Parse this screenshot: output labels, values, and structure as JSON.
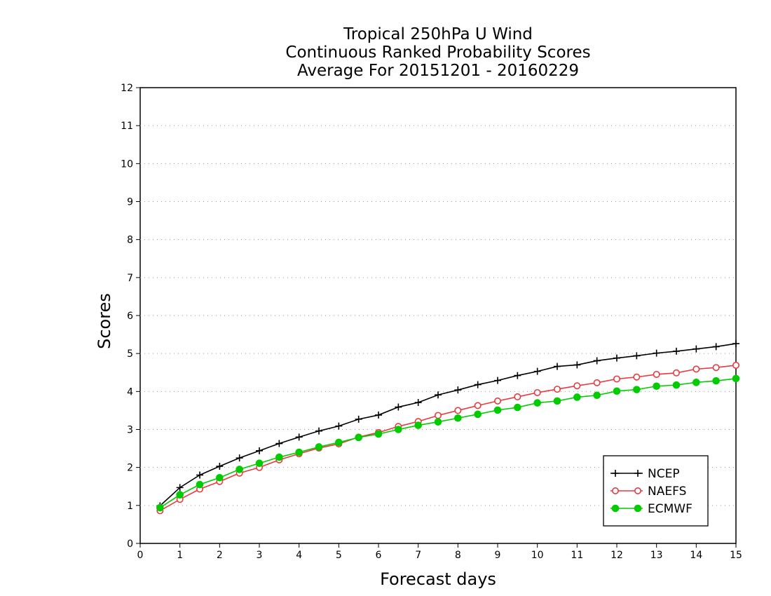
{
  "chart_data": {
    "type": "line",
    "title": [
      "Tropical 250hPa U Wind",
      "Continuous Ranked Probability Scores",
      "Average For 20151201 - 20160229"
    ],
    "xlabel": "Forecast days",
    "ylabel": "Scores",
    "xlim": [
      0,
      15
    ],
    "ylim": [
      0,
      12
    ],
    "xticks": [
      0,
      1,
      2,
      3,
      4,
      5,
      6,
      7,
      8,
      9,
      10,
      11,
      12,
      13,
      14,
      15
    ],
    "yticks": [
      0,
      1,
      2,
      3,
      4,
      5,
      6,
      7,
      8,
      9,
      10,
      11,
      12
    ],
    "grid": "horizontal dotted",
    "legend_position": "bottom-right",
    "x": [
      0.5,
      1,
      1.5,
      2,
      2.5,
      3,
      3.5,
      4,
      4.5,
      5,
      5.5,
      6,
      6.5,
      7,
      7.5,
      8,
      8.5,
      9,
      9.5,
      10,
      10.5,
      11,
      11.5,
      12,
      12.5,
      13,
      13.5,
      14,
      14.5,
      15
    ],
    "series": [
      {
        "name": "NCEP",
        "color": "#000000",
        "marker": "plus",
        "values": [
          0.99,
          1.47,
          1.8,
          2.03,
          2.25,
          2.44,
          2.63,
          2.8,
          2.96,
          3.09,
          3.27,
          3.38,
          3.59,
          3.71,
          3.91,
          4.04,
          4.18,
          4.29,
          4.42,
          4.53,
          4.66,
          4.7,
          4.81,
          4.88,
          4.94,
          5.01,
          5.06,
          5.12,
          5.18,
          5.26
        ]
      },
      {
        "name": "NAEFS",
        "color": "#e8393f",
        "marker": "open-circle",
        "values": [
          0.86,
          1.16,
          1.43,
          1.63,
          1.85,
          2.0,
          2.2,
          2.36,
          2.51,
          2.62,
          2.8,
          2.92,
          3.08,
          3.21,
          3.37,
          3.5,
          3.63,
          3.75,
          3.86,
          3.97,
          4.06,
          4.15,
          4.23,
          4.33,
          4.38,
          4.45,
          4.49,
          4.59,
          4.63,
          4.69
        ]
      },
      {
        "name": "ECMWF",
        "color": "#00cc00",
        "marker": "filled-circle",
        "values": [
          0.94,
          1.28,
          1.55,
          1.73,
          1.95,
          2.11,
          2.27,
          2.4,
          2.54,
          2.66,
          2.79,
          2.88,
          3.0,
          3.11,
          3.2,
          3.3,
          3.4,
          3.51,
          3.58,
          3.7,
          3.75,
          3.85,
          3.9,
          4.01,
          4.05,
          4.14,
          4.17,
          4.24,
          4.28,
          4.34
        ]
      }
    ]
  }
}
